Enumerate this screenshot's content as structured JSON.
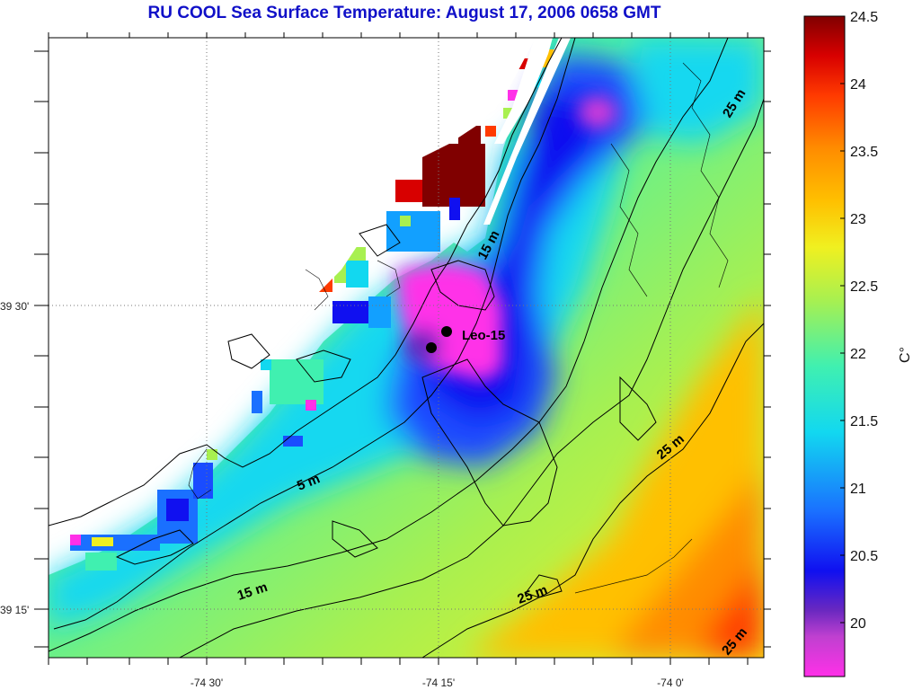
{
  "title": "RU COOL  Sea Surface Temperature:  August 17, 2006 0658 GMT",
  "map": {
    "lat_labels": [
      "39 30'",
      "39 15'"
    ],
    "lon_labels": [
      "-74 30'",
      "-74 15'",
      "-74 0'"
    ],
    "station_label": "Leo-15",
    "isobath_labels": [
      "5 m",
      "15 m",
      "15 m",
      "25 m",
      "25 m",
      "25 m",
      "25 m"
    ]
  },
  "colorbar": {
    "unit": "C°",
    "ticks": [
      "24.5",
      "24",
      "23.5",
      "23",
      "22.5",
      "22",
      "21.5",
      "21",
      "20.5",
      "20"
    ],
    "tick_values": [
      24.5,
      24,
      23.5,
      23,
      22.5,
      22,
      21.5,
      21,
      20.5,
      20
    ],
    "min": 19.6,
    "max": 24.5,
    "stops": [
      "#ff30e8",
      "#c040d0",
      "#6a28c0",
      "#1010f0",
      "#1a70ff",
      "#12d8f0",
      "#40f0b0",
      "#a8f050",
      "#f0f020",
      "#ffc000",
      "#ff8c00",
      "#ff3a00",
      "#d80000",
      "#800000"
    ]
  }
}
